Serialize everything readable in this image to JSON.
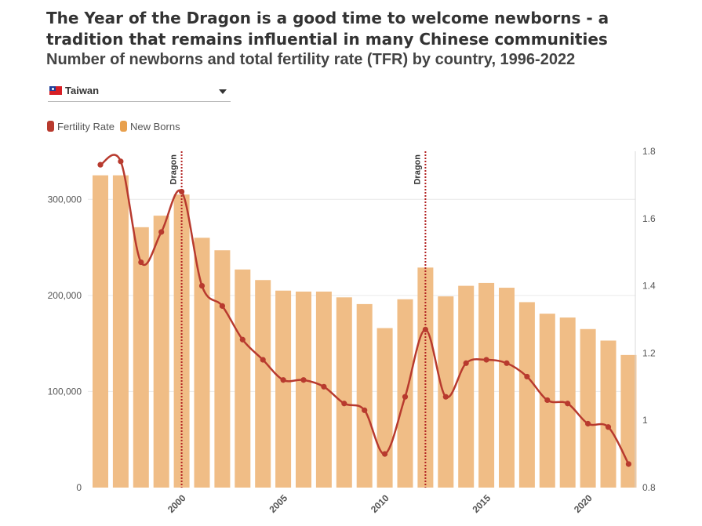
{
  "title": "The Year of the Dragon is a good time to welcome newborns - a tradition that remains influential in many Chinese communities",
  "subtitle": "Number of newborns and total fertility rate (TFR) by country, 1996-2022",
  "selector": {
    "selected": "Taiwan",
    "flag_icon": "taiwan-flag-icon"
  },
  "legend": {
    "fertility_label": "Fertility Rate",
    "newborns_label": "New Borns"
  },
  "colors": {
    "bar": "#f0bd86",
    "line": "#b83a2e",
    "dragon_line": "#b32424",
    "grid": "#e9e9e9",
    "swatch_fertility": "#b83a2e",
    "swatch_newborns": "#e8a04e"
  },
  "chart_data": {
    "type": "bar",
    "combo": "bar + line (dual axis)",
    "title": "Number of newborns and total fertility rate (TFR) by country, 1996-2022",
    "x": [
      1996,
      1997,
      1998,
      1999,
      2000,
      2001,
      2002,
      2003,
      2004,
      2005,
      2006,
      2007,
      2008,
      2009,
      2010,
      2011,
      2012,
      2013,
      2014,
      2015,
      2016,
      2017,
      2018,
      2019,
      2020,
      2021,
      2022
    ],
    "x_ticks": [
      2000,
      2005,
      2010,
      2015,
      2020
    ],
    "series": [
      {
        "name": "New Borns",
        "type": "bar",
        "axis": "left",
        "values": [
          325000,
          325000,
          271000,
          283000,
          305000,
          260000,
          247000,
          227000,
          216000,
          205000,
          204000,
          204000,
          198000,
          191000,
          166000,
          196000,
          229000,
          199000,
          210000,
          213000,
          208000,
          193000,
          181000,
          177000,
          165000,
          153000,
          138000
        ]
      },
      {
        "name": "Fertility Rate",
        "type": "line",
        "axis": "right",
        "values": [
          1.76,
          1.77,
          1.47,
          1.56,
          1.68,
          1.4,
          1.34,
          1.24,
          1.18,
          1.12,
          1.12,
          1.1,
          1.05,
          1.03,
          0.9,
          1.07,
          1.27,
          1.07,
          1.17,
          1.18,
          1.17,
          1.13,
          1.06,
          1.05,
          0.99,
          0.98,
          0.87
        ]
      }
    ],
    "y_left": {
      "min": 0,
      "max": 350000,
      "ticks": [
        0,
        100000,
        200000,
        300000
      ],
      "tick_labels": [
        "0",
        "100,000",
        "200,000",
        "300,000"
      ]
    },
    "y_right": {
      "min": 0.8,
      "max": 1.8,
      "ticks": [
        0.8,
        1,
        1.2,
        1.4,
        1.6,
        1.8
      ],
      "tick_labels": [
        "0.8",
        "1",
        "1.2",
        "1.4",
        "1.6",
        "1.8"
      ]
    },
    "annotations": [
      {
        "year": 2000,
        "label": "Dragon"
      },
      {
        "year": 2012,
        "label": "Dragon"
      }
    ],
    "grid": true,
    "legend_position": "top-left"
  }
}
